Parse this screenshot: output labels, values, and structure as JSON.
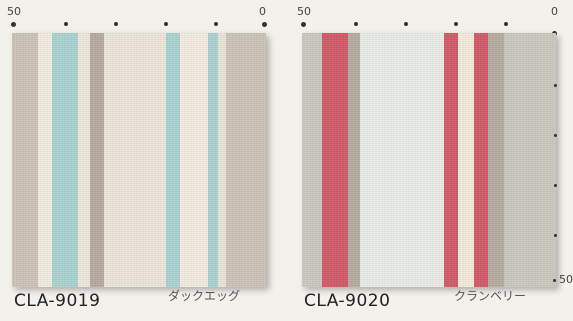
{
  "swatches": [
    {
      "code": "CLA-9019",
      "name": "ダックエッグ",
      "scale_start": "50",
      "scale_end": "0",
      "base_color": "#e9e4d7",
      "stripes": [
        {
          "color": "#cdc3b8"
        },
        {
          "color": "#f3ece0"
        },
        {
          "color": "#a9d3d1"
        },
        {
          "color": "#efe8dc"
        },
        {
          "color": "#b8aaa0"
        },
        {
          "color": "#ece6da"
        },
        {
          "color": "#a9d3d1"
        },
        {
          "color": "#f3ece0"
        },
        {
          "color": "#a9d3d1"
        },
        {
          "color": "#cdc3b8"
        }
      ]
    },
    {
      "code": "CLA-9020",
      "name": "クランベリー",
      "scale_start": "50",
      "scale_end": "0",
      "vertical_end": "50",
      "base_color": "#e6e9e6",
      "stripes": [
        {
          "color": "#c9c9bf"
        },
        {
          "color": "#d25a68"
        },
        {
          "color": "#b5aca0"
        },
        {
          "color": "#e9ece8"
        },
        {
          "color": "#d25a68"
        },
        {
          "color": "#f4ebdb"
        },
        {
          "color": "#d25a68"
        },
        {
          "color": "#b5aca0"
        },
        {
          "color": "#c9c9bf"
        }
      ]
    }
  ]
}
